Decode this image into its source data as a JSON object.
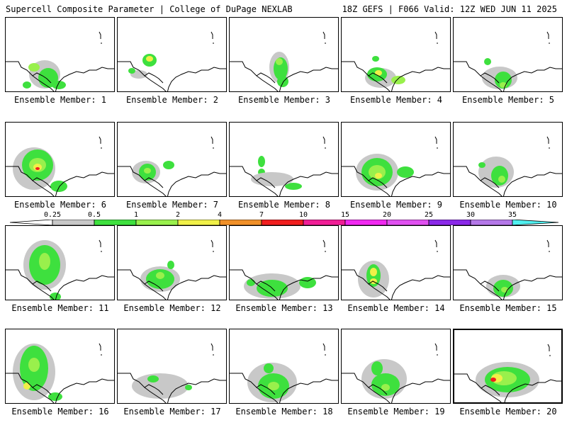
{
  "header": {
    "title": "Supercell Composite Parameter | College of DuPage NEXLAB",
    "run": "18Z GEFS | F066 Valid: 12Z WED JUN 11 2025"
  },
  "legend": {
    "labels": [
      "0.25",
      "0.5",
      "1",
      "2",
      "4",
      "7",
      "10",
      "15",
      "20",
      "25",
      "30",
      "35"
    ],
    "colors": [
      "#ffffff",
      "#c8c8c8",
      "#3ee03e",
      "#99f04c",
      "#f0f048",
      "#f09028",
      "#f01e1e",
      "#f01e96",
      "#f028f0",
      "#e050f0",
      "#8a28e8",
      "#b478e8",
      "#50f0f0"
    ]
  },
  "panels": [
    {
      "label": "Ensemble Member: 1"
    },
    {
      "label": "Ensemble Member: 2"
    },
    {
      "label": "Ensemble Member: 3"
    },
    {
      "label": "Ensemble Member: 4"
    },
    {
      "label": "Ensemble Member: 5"
    },
    {
      "label": "Ensemble Member: 6"
    },
    {
      "label": "Ensemble Member: 7"
    },
    {
      "label": "Ensemble Member: 8"
    },
    {
      "label": "Ensemble Member: 9"
    },
    {
      "label": "Ensemble Member: 10"
    },
    {
      "label": "Ensemble Member: 11"
    },
    {
      "label": "Ensemble Member: 12"
    },
    {
      "label": "Ensemble Member: 13"
    },
    {
      "label": "Ensemble Member: 14"
    },
    {
      "label": "Ensemble Member: 15"
    },
    {
      "label": "Ensemble Member: 16"
    },
    {
      "label": "Ensemble Member: 17"
    },
    {
      "label": "Ensemble Member: 18"
    },
    {
      "label": "Ensemble Member: 19"
    },
    {
      "label": "Ensemble Member: 20"
    }
  ]
}
